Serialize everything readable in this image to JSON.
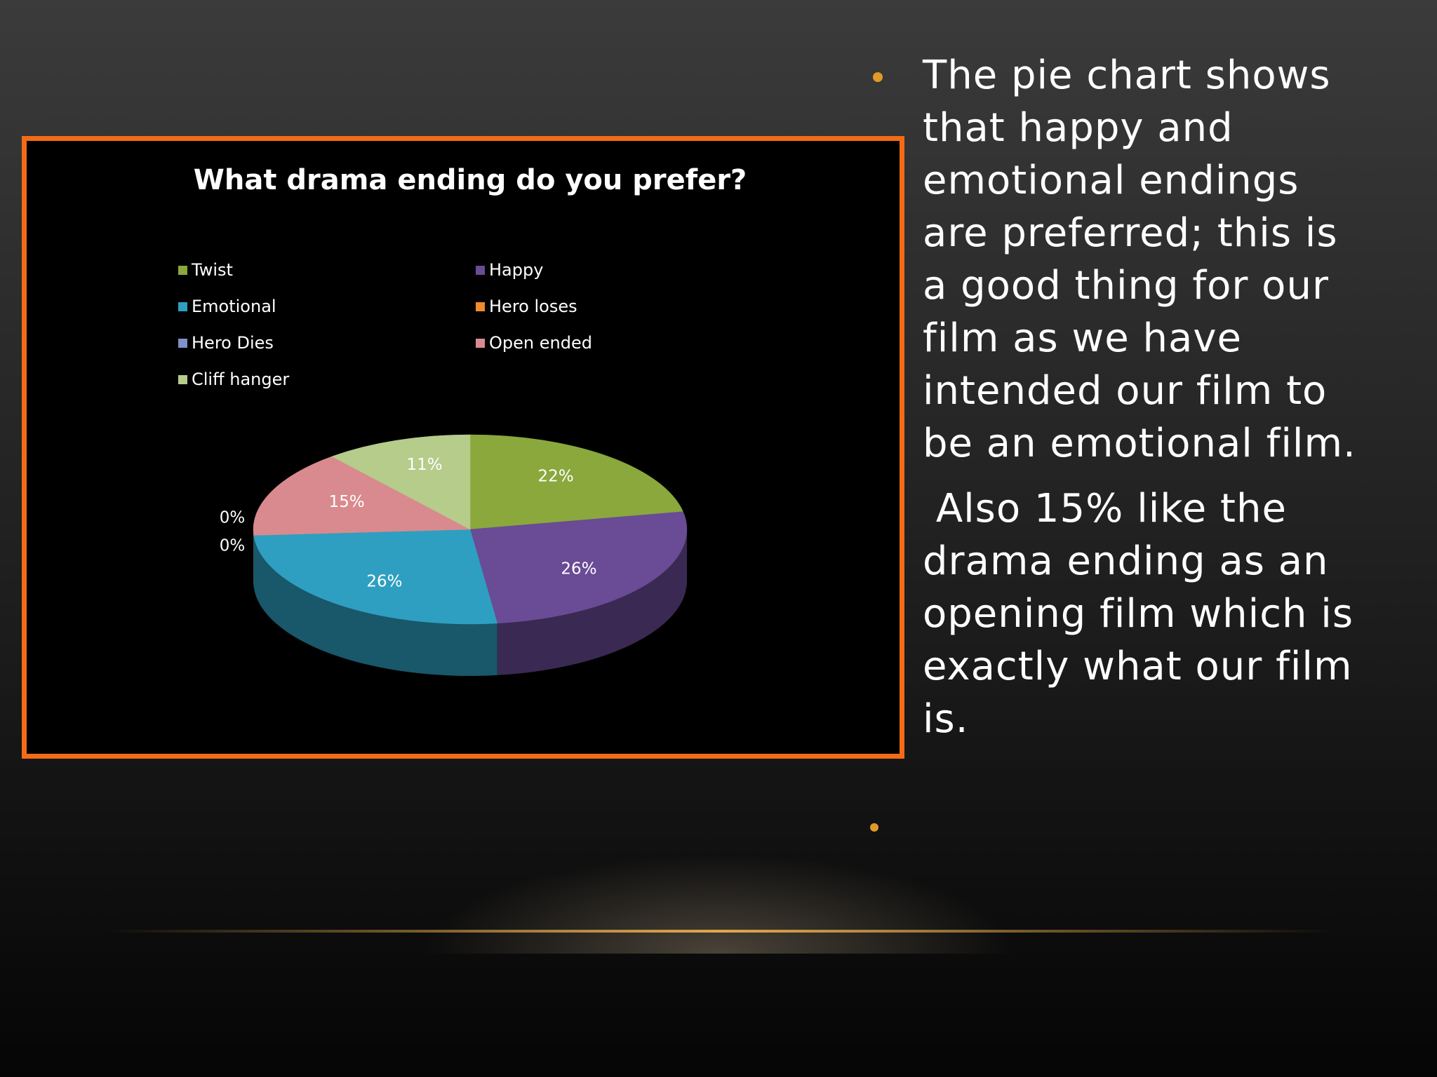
{
  "chart_data": {
    "type": "pie",
    "title": "What drama ending do you prefer?",
    "categories": [
      "Twist",
      "Happy",
      "Emotional",
      "Hero loses",
      "Hero Dies",
      "Open ended",
      "Cliff hanger"
    ],
    "values": [
      22,
      26,
      26,
      0,
      0,
      15,
      11
    ],
    "value_labels": [
      "22%",
      "26%",
      "26%",
      "0%",
      "0%",
      "15%",
      "11%"
    ],
    "colors": [
      "#8aa83c",
      "#6a4b95",
      "#2e9fc0",
      "#f08a2c",
      "#8090c8",
      "#d98a8e",
      "#b5cc8a"
    ],
    "legend": "top"
  },
  "text": {
    "bullets": [
      "The pie chart shows that happy and emotional endings are preferred; this is a good thing for our film as we have intended our film to be an emotional film.",
      " Also 15% like the drama ending as an opening film which is exactly what our film is."
    ]
  }
}
